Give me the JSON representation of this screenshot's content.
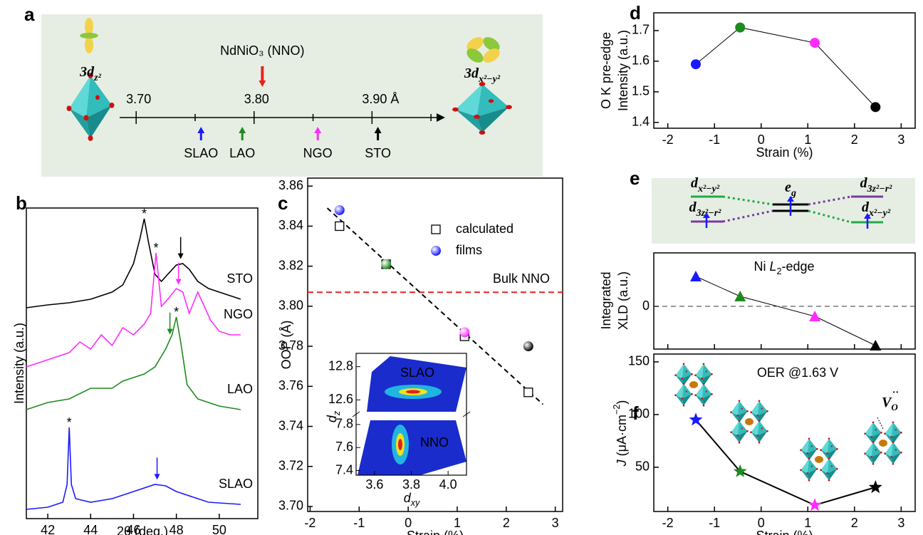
{
  "chart_data": [
    {
      "panel": "a",
      "type": "number-line",
      "title": "NdNiO₃ (NNO)",
      "title_color": "#e8221e",
      "xlim": [
        3.686,
        3.962
      ],
      "xticks": [
        {
          "value": 3.7,
          "label": "3.70"
        },
        {
          "value": 3.8,
          "label": "3.80"
        },
        {
          "value": 3.9,
          "label": "3.90 Å"
        }
      ],
      "minor_xticks": [
        3.75,
        3.85,
        3.95
      ],
      "marker_value": 3.807,
      "categories": [
        "SLAO",
        "LAO",
        "NGO",
        "STO"
      ],
      "values": [
        3.755,
        3.79,
        3.854,
        3.905
      ],
      "colors": [
        "#1a1aff",
        "#1f8a1f",
        "#ff2bff",
        "#000000"
      ],
      "orbital_labels": [
        {
          "base": "3d",
          "sub": "z²"
        },
        {
          "base": "3d",
          "sub": "x²−y²"
        }
      ]
    },
    {
      "panel": "b",
      "type": "line",
      "xlabel": "2θ (deg.)",
      "ylabel": "Intensity (a.u.)",
      "xlim": [
        41,
        51.8
      ],
      "ylim": [
        0,
        436
      ],
      "xticks": [
        42,
        44,
        46,
        48,
        50
      ],
      "peak_marker": "*",
      "series": [
        {
          "name": "STO",
          "color": "#000000",
          "peak_x": 46.5,
          "arrow_x": 48.2,
          "x": [
            41,
            42,
            43,
            44,
            45,
            45.5,
            46,
            46.3,
            46.5,
            46.7,
            47,
            47.3,
            47.6,
            48,
            48.3,
            48.6,
            49,
            49.5,
            50,
            50.5,
            51
          ],
          "values": [
            296,
            300,
            303,
            308,
            318,
            328,
            358,
            393,
            421,
            388,
            343,
            333,
            343,
            356,
            358,
            350,
            333,
            323,
            318,
            313,
            308
          ]
        },
        {
          "name": "NGO",
          "color": "#ff2bff",
          "peak_x": 47.05,
          "arrow_x": 48.1,
          "x": [
            41,
            42,
            43,
            43.5,
            44,
            44.5,
            45,
            45.5,
            46,
            46.5,
            46.8,
            47.05,
            47.3,
            47.6,
            48,
            48.3,
            48.6,
            49,
            49.3,
            49.6,
            50,
            50.5,
            51
          ],
          "values": [
            213,
            223,
            233,
            248,
            238,
            258,
            243,
            268,
            258,
            273,
            288,
            373,
            298,
            308,
            323,
            318,
            288,
            318,
            298,
            278,
            263,
            258,
            258
          ]
        },
        {
          "name": "LAO",
          "color": "#1f8a1f",
          "peak_x": 48.0,
          "arrow_x": 47.7,
          "x": [
            41,
            42,
            43,
            44,
            45,
            45.5,
            46,
            46.5,
            47,
            47.5,
            47.8,
            48,
            48.2,
            48.5,
            49,
            49.5,
            50,
            51
          ],
          "values": [
            153,
            163,
            168,
            183,
            183,
            193,
            198,
            203,
            213,
            238,
            258,
            283,
            248,
            188,
            168,
            163,
            158,
            153
          ]
        },
        {
          "name": "SLAO",
          "color": "#1a1aff",
          "peak_x": 43.0,
          "arrow_x": 47.1,
          "x": [
            41,
            42,
            42.7,
            42.9,
            43,
            43.1,
            43.3,
            44,
            45,
            46,
            47,
            47.5,
            48,
            49,
            49.5,
            50,
            51
          ],
          "values": [
            13,
            16,
            23,
            48,
            128,
            48,
            28,
            23,
            28,
            38,
            48,
            46,
            38,
            28,
            23,
            22,
            20
          ]
        }
      ]
    },
    {
      "panel": "c",
      "type": "scatter",
      "xlabel": "Strain (%)",
      "ylabel": "OOP (Å)",
      "xlim": [
        -2.05,
        3.15
      ],
      "ylim": [
        3.6975,
        3.864
      ],
      "xticks": [
        -2,
        -1,
        0,
        1,
        2,
        3
      ],
      "yticks": [
        {
          "value": 3.7,
          "label": "3.70"
        },
        3.72,
        3.74,
        3.76,
        3.78,
        {
          "value": 3.8,
          "label": "3.80"
        },
        3.82,
        3.84,
        3.86
      ],
      "series": [
        {
          "name": "calculated",
          "marker": "square",
          "color": "#000000",
          "x": [
            -1.4,
            -0.45,
            1.15,
            2.45
          ],
          "values": [
            3.84,
            3.821,
            3.785,
            3.757
          ]
        },
        {
          "name": "films",
          "marker": "sphere",
          "colors": [
            "#1a1aff",
            "#1f8a1f",
            "#ff2bff",
            "#000000"
          ],
          "x": [
            -1.4,
            -0.45,
            1.15,
            2.45
          ],
          "values": [
            3.848,
            3.821,
            3.787,
            3.78
          ]
        }
      ],
      "reference_line": {
        "label": "Bulk NNO",
        "value": 3.807,
        "color": "#e8221e"
      },
      "fit_line": {
        "x": [
          -1.65,
          2.75
        ],
        "values": [
          3.849,
          3.751
        ]
      },
      "inset": {
        "xlim": [
          3.5,
          4.1
        ],
        "xticks": [
          3.6,
          3.8,
          {
            "value": 4,
            "label": "4.0"
          }
        ],
        "xlabel": {
          "base": "d",
          "sub": "xy"
        },
        "ylabel": {
          "base": "d",
          "sub": "z"
        },
        "panels": [
          {
            "label": "SLAO",
            "ylim": [
              12.52,
              12.88
            ],
            "yticks": [
              12.6,
              12.8
            ]
          },
          {
            "label": "NNO",
            "ylim": [
              7.36,
              7.88
            ],
            "yticks": [
              7.4,
              7.6,
              7.8
            ]
          }
        ]
      }
    },
    {
      "panel": "d",
      "type": "line",
      "xlabel": "Strain (%)",
      "ylabel": [
        "O K pre-edge",
        "Intensity (a.u.)"
      ],
      "xlim": [
        -2.3,
        3.3
      ],
      "ylim": [
        1.381,
        1.758
      ],
      "xticks": [
        -2,
        -1,
        0,
        1,
        2,
        3
      ],
      "yticks": [
        1.4,
        1.5,
        1.6,
        1.7
      ],
      "marker": "circle",
      "x": [
        -1.4,
        -0.45,
        1.15,
        2.45
      ],
      "values": [
        1.59,
        1.71,
        1.66,
        1.45
      ],
      "colors": [
        "#1a1aff",
        "#1f8a1f",
        "#ff2bff",
        "#000000"
      ]
    },
    {
      "panel": "e",
      "type": "line",
      "title": [
        "Ni ",
        "L",
        "2",
        "-edge"
      ],
      "ylabel": [
        "Integrated",
        "XLD (a.u.)"
      ],
      "xlim": [
        -2.3,
        3.3
      ],
      "ylim": [
        -60,
        75
      ],
      "xticks": [
        -2,
        -1,
        0,
        1,
        2,
        3
      ],
      "yticks": [
        0
      ],
      "marker": "triangle",
      "x": [
        -1.4,
        -0.45,
        1.15,
        2.45
      ],
      "values": [
        42,
        14,
        -14,
        -55
      ],
      "colors": [
        "#1a1aff",
        "#1f8a1f",
        "#ff2bff",
        "#000000"
      ],
      "orbitals": [
        {
          "base": "d",
          "sub": "x²−y²"
        },
        {
          "base": "d",
          "sub": "3z²−r²"
        }
      ],
      "eg": {
        "base": "e",
        "sub": "g"
      }
    },
    {
      "panel": "f",
      "type": "line",
      "title": "OER @1.63 V",
      "xlabel": "Strain (%)",
      "ylabel": [
        "J",
        " (μA·cm",
        "−2",
        ")"
      ],
      "xlim": [
        -2.3,
        3.3
      ],
      "ylim": [
        8,
        157.4
      ],
      "xticks": [
        -2,
        -1,
        0,
        1,
        2,
        3
      ],
      "yticks": [
        50,
        100,
        150
      ],
      "marker": "star",
      "x": [
        -1.4,
        -0.45,
        1.15,
        2.45
      ],
      "values": [
        95,
        46,
        14,
        31
      ],
      "colors": [
        "#1a1aff",
        "#1f8a1f",
        "#ff2bff",
        "#000000"
      ],
      "vacancy_label": [
        "V",
        "O",
        "··"
      ]
    }
  ]
}
